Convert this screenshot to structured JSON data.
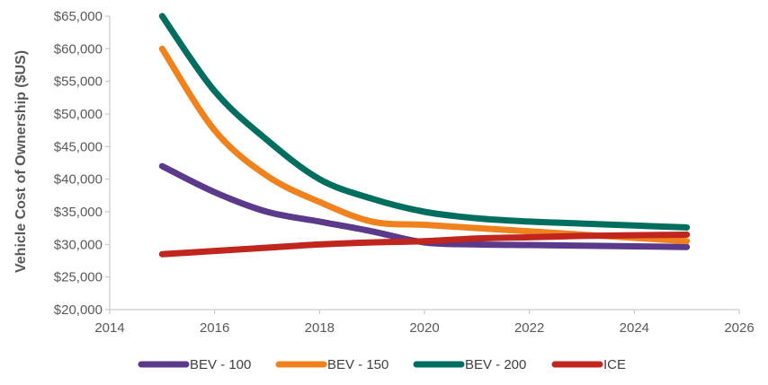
{
  "chart_data": {
    "type": "line",
    "title": "",
    "xlabel": "",
    "ylabel": "Vehicle Cost of Ownership ($US)",
    "xlim": [
      2014,
      2026
    ],
    "ylim": [
      20000,
      65000
    ],
    "x_ticks": [
      2014,
      2016,
      2018,
      2020,
      2022,
      2024,
      2026
    ],
    "y_ticks": [
      20000,
      25000,
      30000,
      35000,
      40000,
      45000,
      50000,
      55000,
      60000,
      65000
    ],
    "x_tick_labels": [
      "2014",
      "2016",
      "2018",
      "2020",
      "2022",
      "2024",
      "2026"
    ],
    "y_tick_labels": [
      "$20,000",
      "$25,000",
      "$30,000",
      "$35,000",
      "$40,000",
      "$45,000",
      "$50,000",
      "$55,000",
      "$60,000",
      "$65,000"
    ],
    "grid": false,
    "legend_position": "bottom",
    "series": [
      {
        "name": "BEV - 100",
        "color": "#5b3a8c",
        "x": [
          2015,
          2016,
          2017,
          2018,
          2019,
          2020,
          2021,
          2022,
          2023,
          2024,
          2025
        ],
        "values": [
          42000,
          38000,
          35000,
          33500,
          32000,
          30300,
          30000,
          29900,
          29800,
          29700,
          29600
        ]
      },
      {
        "name": "BEV - 150",
        "color": "#f0821e",
        "x": [
          2015,
          2016,
          2017,
          2018,
          2019,
          2020,
          2021,
          2022,
          2023,
          2024,
          2025
        ],
        "values": [
          60000,
          47500,
          40500,
          36500,
          33500,
          33000,
          32500,
          32000,
          31500,
          31000,
          30500
        ]
      },
      {
        "name": "BEV - 200",
        "color": "#006e5f",
        "x": [
          2015,
          2016,
          2017,
          2018,
          2019,
          2020,
          2021,
          2022,
          2023,
          2024,
          2025
        ],
        "values": [
          65000,
          53500,
          46000,
          40000,
          37000,
          35000,
          34000,
          33500,
          33200,
          32900,
          32600
        ]
      },
      {
        "name": "ICE",
        "color": "#c0251e",
        "x": [
          2015,
          2016,
          2017,
          2018,
          2019,
          2020,
          2021,
          2022,
          2023,
          2024,
          2025
        ],
        "values": [
          28500,
          29000,
          29500,
          30000,
          30300,
          30500,
          30900,
          31100,
          31300,
          31400,
          31500
        ]
      }
    ]
  }
}
